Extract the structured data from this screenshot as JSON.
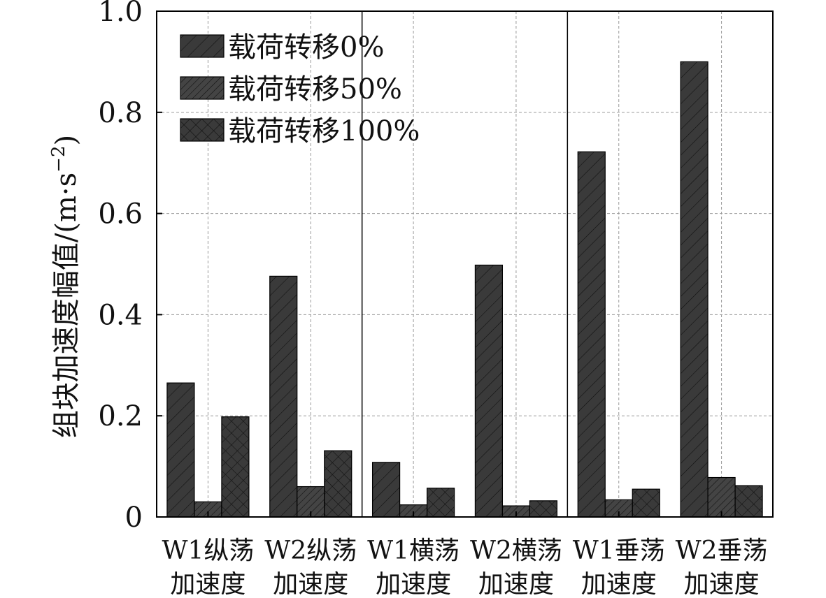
{
  "chart_data": {
    "type": "bar",
    "categories": [
      [
        "W1纵荡",
        "加速度"
      ],
      [
        "W2纵荡",
        "加速度"
      ],
      [
        "W1横荡",
        "加速度"
      ],
      [
        "W2横荡",
        "加速度"
      ],
      [
        "W1垂荡",
        "加速度"
      ],
      [
        "W2垂荡",
        "加速度"
      ]
    ],
    "series": [
      {
        "name": "载荷转移0%",
        "pattern": "diagonal",
        "values": [
          0.265,
          0.476,
          0.108,
          0.498,
          0.722,
          0.9
        ]
      },
      {
        "name": "载荷转移50%",
        "pattern": "dense-diagonal",
        "values": [
          0.03,
          0.06,
          0.024,
          0.022,
          0.034,
          0.078
        ]
      },
      {
        "name": "载荷转移100%",
        "pattern": "crosshatch",
        "values": [
          0.198,
          0.131,
          0.057,
          0.032,
          0.055,
          0.062
        ]
      }
    ],
    "ylabel": "组块加速度幅值/(m·s",
    "ylabel_exponent": "−2",
    "ylabel_close": ")",
    "ylim": [
      0,
      1.0
    ],
    "yticks": [
      "0",
      "0.2",
      "0.4",
      "0.6",
      "0.8",
      "1.0"
    ],
    "ytick_values": [
      0,
      0.2,
      0.4,
      0.6,
      0.8,
      1.0
    ],
    "grid": true,
    "legend_position": "top-left",
    "group_separators_after": [
      2,
      4
    ],
    "colors": {
      "bar": "#3a3a3a",
      "hatch": "#111111",
      "axis": "#000000",
      "grid": "#999999"
    }
  }
}
